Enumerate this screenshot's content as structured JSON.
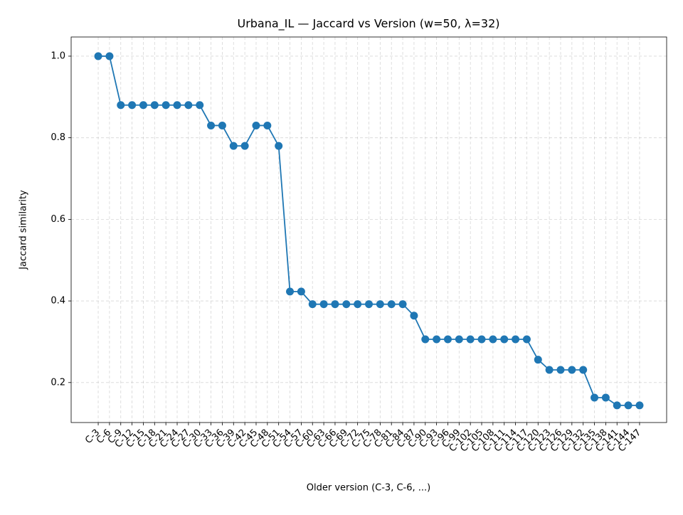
{
  "chart_data": {
    "type": "line",
    "title": "Urbana_IL — Jaccard vs Version (w=50, λ=32)",
    "x_label": "Older version (C-3, C-6, ...)",
    "y_label": "Jaccard similarity",
    "categories": [
      "C-3",
      "C-6",
      "C-9",
      "C-12",
      "C-15",
      "C-18",
      "C-21",
      "C-24",
      "C-27",
      "C-30",
      "C-33",
      "C-36",
      "C-39",
      "C-42",
      "C-45",
      "C-48",
      "C-51",
      "C-54",
      "C-57",
      "C-60",
      "C-63",
      "C-66",
      "C-69",
      "C-72",
      "C-75",
      "C-78",
      "C-81",
      "C-84",
      "C-87",
      "C-90",
      "C-93",
      "C-96",
      "C-99",
      "C-102",
      "C-105",
      "C-108",
      "C-111",
      "C-114",
      "C-117",
      "C-120",
      "C-123",
      "C-126",
      "C-129",
      "C-132",
      "C-135",
      "C-138",
      "C-141",
      "C-144",
      "C-147"
    ],
    "series": [
      {
        "name": "Jaccard similarity",
        "color": "#1f77b4",
        "values": [
          1.0,
          1.0,
          0.88,
          0.88,
          0.88,
          0.88,
          0.88,
          0.88,
          0.88,
          0.88,
          0.83,
          0.83,
          0.78,
          0.78,
          0.83,
          0.83,
          0.78,
          0.423,
          0.423,
          0.392,
          0.392,
          0.392,
          0.392,
          0.392,
          0.392,
          0.392,
          0.392,
          0.392,
          0.364,
          0.306,
          0.306,
          0.306,
          0.306,
          0.306,
          0.306,
          0.306,
          0.306,
          0.306,
          0.306,
          0.256,
          0.231,
          0.231,
          0.231,
          0.231,
          0.163,
          0.163,
          0.144,
          0.144,
          0.144
        ]
      }
    ],
    "ylim": [
      0.102,
      1.047
    ],
    "yticks": [
      0.2,
      0.4,
      0.6,
      0.8,
      {
        "value": 1,
        "label": "1.0"
      }
    ],
    "grid": true
  }
}
